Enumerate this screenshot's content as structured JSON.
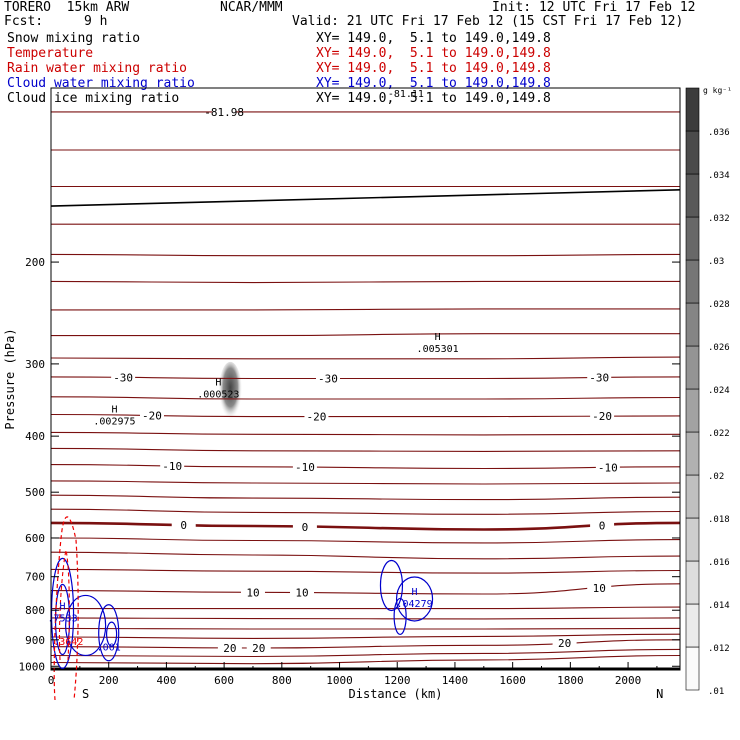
{
  "header": {
    "model": "TORERO  15km ARW",
    "org": "NCAR/MMM",
    "init": "Init: 12 UTC Fri 17 Feb 12",
    "fcst_label": "Fcst:",
    "fcst_value": "9 h",
    "valid": "Valid: 21 UTC Fri 17 Feb 12 (15 CST Fri 17 Feb 12)"
  },
  "fields": [
    {
      "name": "Snow mixing ratio",
      "xy": "XY= 149.0,  5.1 to 149.0,149.8",
      "color": "#000000"
    },
    {
      "name": "Temperature",
      "xy": "XY= 149.0,  5.1 to 149.0,149.8",
      "color": "#cc0000"
    },
    {
      "name": "Rain water mixing ratio",
      "xy": "XY= 149.0,  5.1 to 149.0,149.8",
      "color": "#cc0000"
    },
    {
      "name": "Cloud water mixing ratio",
      "xy": "XY= 149.0,  5.1 to 149.0,149.8",
      "color": "#0000cc"
    },
    {
      "name": "Cloud ice mixing ratio",
      "xy": "XY= 149.0,  5.1 to 149.0,149.8",
      "color": "#000000"
    }
  ],
  "chart_data": {
    "type": "contour-cross-section",
    "xlabel": "Distance (km)",
    "ylabel": "Pressure (hPa)",
    "xlim": [
      0,
      2180
    ],
    "ylim": [
      1015,
      100
    ],
    "x_ticks": [
      0,
      200,
      400,
      600,
      800,
      1000,
      1200,
      1400,
      1600,
      1800,
      2000
    ],
    "y_ticks": [
      200,
      300,
      400,
      500,
      600,
      700,
      800,
      900,
      1000
    ],
    "y_tick_labels": [
      "200",
      "300",
      "400",
      "500",
      "600",
      "700",
      "800",
      "900",
      "1000"
    ],
    "end_labels": {
      "left": "S",
      "right": "N"
    },
    "temperature_contours": [
      {
        "p": [
          110,
          110,
          110,
          110
        ],
        "x": [
          0,
          700,
          1500,
          2180
        ],
        "label": "-81.98",
        "label_x": 600
      },
      {
        "p": [
          128,
          128,
          128,
          128
        ],
        "x": [
          0,
          700,
          1500,
          2180
        ]
      },
      {
        "p": [
          148,
          148,
          148,
          148
        ],
        "x": [
          0,
          700,
          1500,
          2180
        ]
      },
      {
        "p": [
          172,
          172,
          172,
          172
        ],
        "x": [
          0,
          700,
          1500,
          2180
        ]
      },
      {
        "p": [
          194,
          195,
          195,
          194
        ],
        "x": [
          0,
          700,
          1500,
          2180
        ]
      },
      {
        "p": [
          216,
          217,
          216,
          216
        ],
        "x": [
          0,
          700,
          1500,
          2180
        ]
      },
      {
        "p": [
          242,
          242,
          241,
          241
        ],
        "x": [
          0,
          700,
          1500,
          2180
        ]
      },
      {
        "p": [
          268,
          268,
          266,
          266
        ],
        "x": [
          0,
          700,
          1500,
          2180
        ]
      },
      {
        "p": [
          293,
          294,
          294,
          292
        ],
        "x": [
          0,
          700,
          1500,
          2180
        ]
      },
      {
        "p": [
          316,
          318,
          318,
          316
        ],
        "x": [
          0,
          700,
          1500,
          2180
        ],
        "label": "-30",
        "label_x": [
          250,
          960,
          1900
        ]
      },
      {
        "p": [
          342,
          345,
          345,
          343
        ],
        "x": [
          0,
          700,
          1500,
          2180
        ]
      },
      {
        "p": [
          367,
          370,
          370,
          369
        ],
        "x": [
          0,
          700,
          1500,
          2180
        ],
        "label": "-20",
        "label_x": [
          350,
          920,
          1910
        ]
      },
      {
        "p": [
          394,
          397,
          398,
          397
        ],
        "x": [
          0,
          700,
          1500,
          2180
        ]
      },
      {
        "p": [
          420,
          424,
          425,
          424
        ],
        "x": [
          0,
          700,
          1500,
          2180
        ]
      },
      {
        "p": [
          448,
          452,
          455,
          452
        ],
        "x": [
          0,
          700,
          1500,
          2180
        ],
        "label": "-10",
        "label_x": [
          420,
          880,
          1930
        ]
      },
      {
        "p": [
          478,
          482,
          484,
          482
        ],
        "x": [
          0,
          700,
          1500,
          2180
        ]
      },
      {
        "p": [
          506,
          512,
          515,
          510
        ],
        "x": [
          0,
          700,
          1500,
          2180
        ]
      },
      {
        "p": [
          535,
          542,
          546,
          540
        ],
        "x": [
          0,
          700,
          1500,
          2180
        ]
      },
      {
        "p": [
          565,
          572,
          580,
          565
        ],
        "x": [
          0,
          700,
          1500,
          2180
        ],
        "label": "0",
        "label_x": [
          460,
          880,
          1910
        ],
        "bold": true
      },
      {
        "p": [
          600,
          606,
          612,
          604
        ],
        "x": [
          0,
          700,
          1500,
          2180
        ]
      },
      {
        "p": [
          635,
          642,
          652,
          645
        ],
        "x": [
          0,
          700,
          1500,
          2180
        ]
      },
      {
        "p": [
          680,
          685,
          690,
          683
        ],
        "x": [
          0,
          700,
          1500,
          2180
        ]
      },
      {
        "p": [
          740,
          745,
          750,
          720
        ],
        "x": [
          0,
          700,
          1500,
          2180
        ],
        "label": "10",
        "label_x": [
          700,
          870,
          1900
        ]
      },
      {
        "p": [
          795,
          795,
          795,
          790
        ],
        "x": [
          0,
          700,
          1500,
          2180
        ]
      },
      {
        "p": [
          825,
          827,
          828,
          825
        ],
        "x": [
          0,
          700,
          1500,
          2180
        ]
      },
      {
        "p": [
          860,
          862,
          862,
          860
        ],
        "x": [
          0,
          700,
          1500,
          2180
        ]
      },
      {
        "p": [
          890,
          895,
          888,
          880
        ],
        "x": [
          0,
          700,
          1500,
          2180
        ]
      },
      {
        "p": [
          925,
          930,
          920,
          900
        ],
        "x": [
          0,
          700,
          1500,
          2180
        ],
        "label": "20",
        "label_x": [
          620,
          720,
          1780
        ]
      },
      {
        "p": [
          958,
          962,
          950,
          935
        ],
        "x": [
          0,
          700,
          1500,
          2180
        ]
      },
      {
        "p": [
          985,
          990,
          975,
          958
        ],
        "x": [
          0,
          700,
          1500,
          2180
        ]
      }
    ],
    "temperature_labels_extra": [
      "-81.98",
      "-81.11"
    ],
    "snow_max": {
      "label": "H",
      "value": ".002975",
      "x": 220,
      "p": 370
    },
    "cloud_ice_max": [
      {
        "label": "H",
        "value": ".000523",
        "x": 580,
        "p": 332
      },
      {
        "label": "H",
        "value": ".005301",
        "x": 1340,
        "p": 277
      }
    ],
    "cloud_water_max": [
      {
        "label": "H",
        "value": ".7533",
        "x": 40,
        "p": 810
      },
      {
        "label": "H",
        "value": ".04279",
        "x": 1260,
        "p": 765
      },
      {
        "label": "",
        "value": ".001",
        "x": 200,
        "p": 910
      }
    ],
    "rain_water_max": [
      {
        "label": "",
        "value": ".3642",
        "x": 60,
        "p": 890
      }
    ],
    "temperature_point_labels": [
      "-81.11"
    ],
    "colorbar": {
      "unit": "g kg⁻¹",
      "levels": [
        ".01",
        ".012",
        ".014",
        ".016",
        ".018",
        ".02",
        ".022",
        ".024",
        ".026",
        ".028",
        ".03",
        ".032",
        ".034",
        ".036"
      ]
    }
  }
}
